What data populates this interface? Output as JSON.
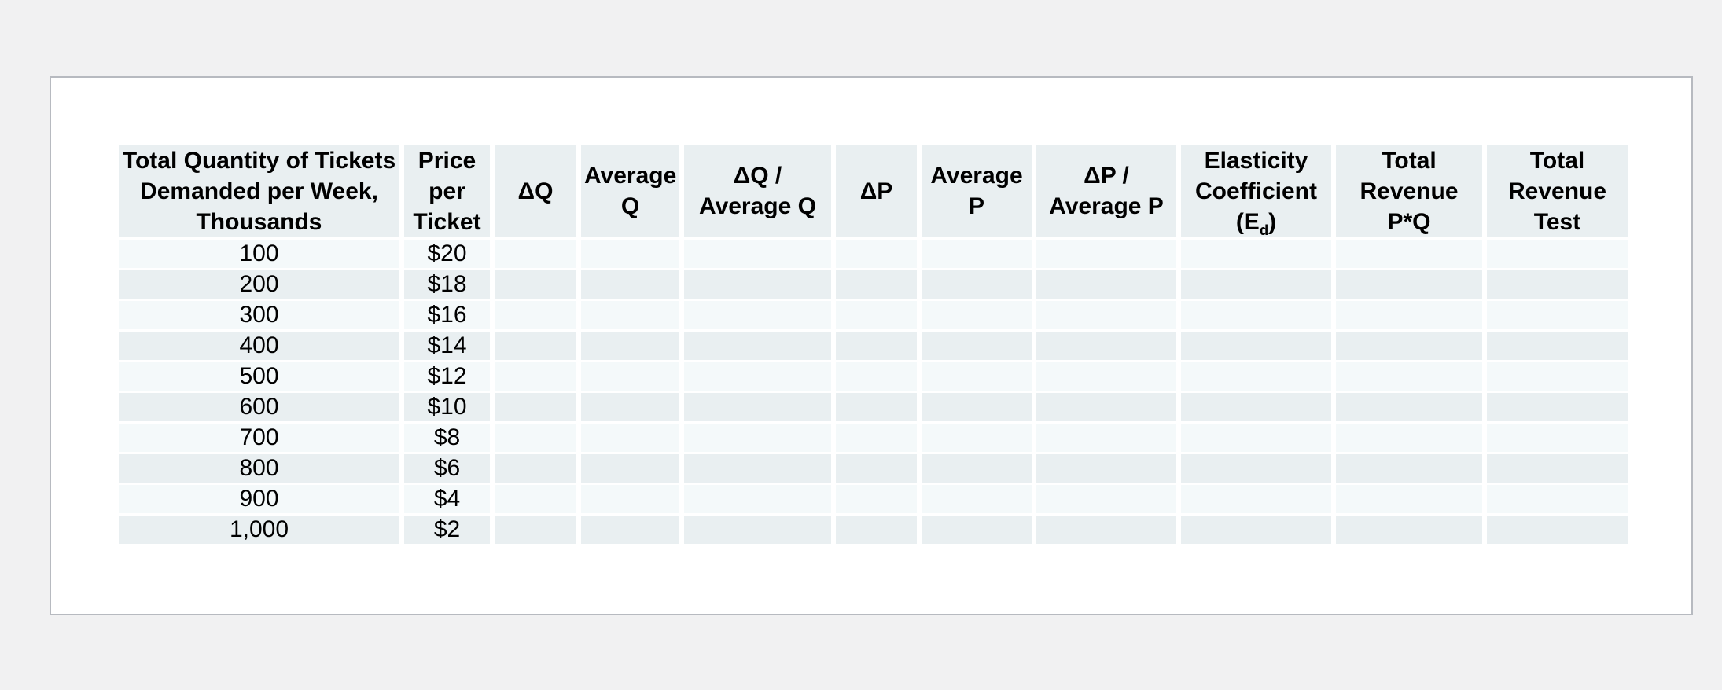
{
  "colors": {
    "page_background": "#f1f1f2",
    "paper": "#ffffff",
    "paper_border": "#b7bac0",
    "header_bg": "#e9eff1",
    "row_bg": "#f4f9fa",
    "row_alt_bg": "#e9eff1",
    "text": "#000000"
  },
  "table": {
    "columns": [
      {
        "label": "Total Quantity of Tickets\nDemanded per Week,\nThousands"
      },
      {
        "label": "Price\nper\nTicket"
      },
      {
        "label": "ΔQ"
      },
      {
        "label": "Average\nQ"
      },
      {
        "label": "ΔQ /\nAverage Q"
      },
      {
        "label": "ΔP"
      },
      {
        "label": "Average\nP"
      },
      {
        "label": "ΔP /\nAverage P"
      },
      {
        "label_parts": {
          "prefix": "Elasticity\nCoefficient\n(E",
          "sub": "d",
          "suffix": ")"
        }
      },
      {
        "label": "Total\nRevenue\nP*Q"
      },
      {
        "label": "Total\nRevenue\nTest"
      }
    ],
    "rows": [
      {
        "qty": "100",
        "price": "$20"
      },
      {
        "qty": "200",
        "price": "$18"
      },
      {
        "qty": "300",
        "price": "$16"
      },
      {
        "qty": "400",
        "price": "$14"
      },
      {
        "qty": "500",
        "price": "$12"
      },
      {
        "qty": "600",
        "price": "$10"
      },
      {
        "qty": "700",
        "price": "$8"
      },
      {
        "qty": "800",
        "price": "$6"
      },
      {
        "qty": "900",
        "price": "$4"
      },
      {
        "qty": "1,000",
        "price": "$2"
      }
    ]
  }
}
